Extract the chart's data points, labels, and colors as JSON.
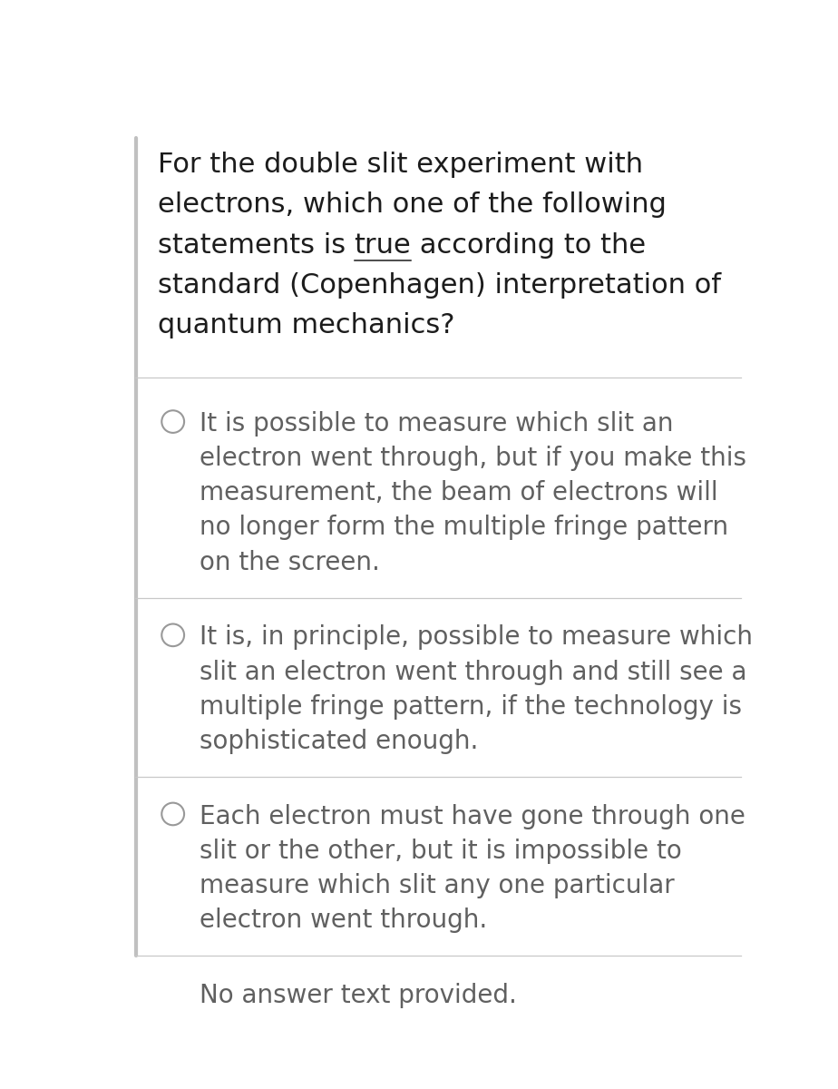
{
  "background_color": "#ffffff",
  "question_lines": [
    "For the double slit experiment with",
    "electrons, which one of the following",
    "statements is true according to the",
    "standard (Copenhagen) interpretation of",
    "quantum mechanics?"
  ],
  "underline_line_idx": 2,
  "underline_before": "statements is ",
  "underline_word": "true",
  "underline_after": " according to the",
  "options": [
    [
      "It is possible to measure which slit an",
      "electron went through, but if you make this",
      "measurement, the beam of electrons will",
      "no longer form the multiple fringe pattern",
      "on the screen."
    ],
    [
      "It is, in principle, possible to measure which",
      "slit an electron went through and still see a",
      "multiple fringe pattern, if the technology is",
      "sophisticated enough."
    ],
    [
      "Each electron must have gone through one",
      "slit or the other, but it is impossible to",
      "measure which slit any one particular",
      "electron went through."
    ],
    [
      "No answer text provided."
    ]
  ],
  "q_fontsize": 22,
  "opt_fontsize": 20,
  "q_color": "#1c1c1c",
  "opt_color": "#606060",
  "sep_color": "#c8c8c8",
  "circle_color": "#999999",
  "bar_color": "#c0c0c0",
  "fig_width": 9.24,
  "fig_height": 12.0,
  "dpi": 100
}
